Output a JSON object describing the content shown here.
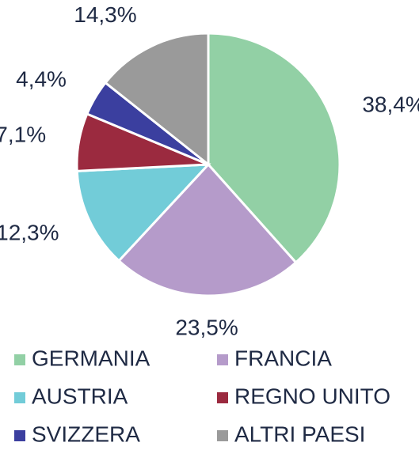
{
  "chart_data": {
    "type": "pie",
    "categories": [
      "GERMANIA",
      "FRANCIA",
      "AUSTRIA",
      "REGNO UNITO",
      "SVIZZERA",
      "ALTRI PAESI"
    ],
    "values": [
      38.4,
      23.5,
      12.3,
      7.1,
      4.4,
      14.3
    ],
    "value_labels": [
      "38,4%",
      "23,5%",
      "12,3%",
      "7,1%",
      "4,4%",
      "14,3%"
    ],
    "colors": [
      "#92d0a5",
      "#b59bca",
      "#72ccd8",
      "#9b2a3f",
      "#3b3f9f",
      "#9a9a9a"
    ],
    "legend": "bottom"
  }
}
